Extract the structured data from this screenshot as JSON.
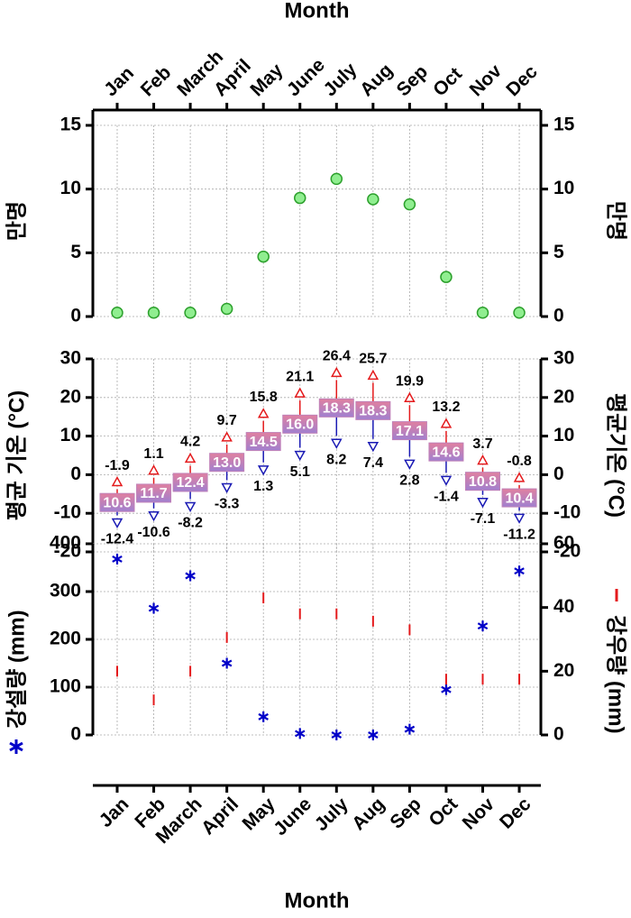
{
  "chart_data": [
    {
      "type": "scatter",
      "x_axis_title": "Month",
      "categories": [
        "Jan",
        "Feb",
        "March",
        "April",
        "May",
        "June",
        "July",
        "Aug",
        "Sep",
        "Oct",
        "Nov",
        "Dec"
      ],
      "ylabel": "만명",
      "y2label": "만명",
      "ylim": [
        0,
        15
      ],
      "yticks": [
        0,
        5,
        10,
        15
      ],
      "y2lim": [
        0,
        15
      ],
      "y2ticks": [
        0,
        5,
        10,
        15
      ],
      "grid": true,
      "series": [
        {
          "color": "#90ee90",
          "edgecolor": "#2ca02c",
          "marker": "circle",
          "values": [
            0.3,
            0.3,
            0.3,
            0.6,
            4.7,
            9.3,
            10.8,
            9.2,
            8.8,
            3.1,
            0.3,
            0.3
          ]
        }
      ]
    },
    {
      "type": "range",
      "ylabel": "평균 기온 (°C)",
      "y2label": "평균기온 (°C)",
      "ylim": [
        -20,
        30
      ],
      "yticks": [
        -20,
        -10,
        0,
        10,
        20,
        30
      ],
      "y2lim": [
        -20,
        30
      ],
      "y2ticks": [
        -20,
        -10,
        0,
        10,
        20,
        30
      ],
      "grid": true,
      "high": {
        "color": "#e41a1c",
        "values": [
          -1.9,
          1.1,
          4.2,
          9.7,
          15.8,
          21.1,
          26.4,
          25.7,
          19.9,
          13.2,
          3.7,
          -0.8
        ]
      },
      "low": {
        "color": "#1a1ab4",
        "values": [
          -12.4,
          -10.6,
          -8.2,
          -3.3,
          1.3,
          5.1,
          8.2,
          7.4,
          2.8,
          -1.4,
          -7.1,
          -11.2
        ]
      },
      "mean": {
        "color": "#c080b8",
        "values": [
          -7.2,
          -4.8,
          -2.0,
          3.2,
          8.6,
          13.1,
          17.3,
          16.6,
          11.4,
          5.9,
          -1.7,
          -6.0
        ]
      },
      "range": {
        "values": [
          10.6,
          11.7,
          12.4,
          13.0,
          14.5,
          16.0,
          18.3,
          18.3,
          17.1,
          14.6,
          10.8,
          10.4
        ],
        "value_labels": [
          "10.6",
          "11.7",
          "12.4",
          "13.0",
          "14.5",
          "16.0",
          "18.3",
          "18.3",
          "17.1",
          "14.6",
          "10.8",
          "10.4"
        ]
      }
    },
    {
      "type": "scatter",
      "x_axis_title": "Month",
      "categories": [
        "Jan",
        "Feb",
        "March",
        "April",
        "May",
        "June",
        "July",
        "Aug",
        "Sep",
        "Oct",
        "Nov",
        "Dec"
      ],
      "ylim": [
        0,
        400
      ],
      "yticks": [
        0,
        100,
        200,
        300,
        400
      ],
      "y2lim": [
        0,
        60
      ],
      "y2ticks": [
        0,
        20,
        40,
        60
      ],
      "grid": true,
      "series": [
        {
          "name": "강설량 (mm)",
          "color": "#0000c8",
          "marker": "asterisk",
          "values": [
            368,
            265,
            333,
            150,
            38,
            3,
            0,
            0,
            12,
            95,
            228,
            343
          ]
        },
        {
          "name": "강우량 (mm)",
          "color": "#e41a1c",
          "marker": "dash",
          "axis": "y2",
          "values": [
            20,
            11,
            20,
            30.6,
            43,
            38,
            38,
            35.7,
            33,
            17.5,
            17.5,
            17.5
          ]
        }
      ]
    }
  ]
}
